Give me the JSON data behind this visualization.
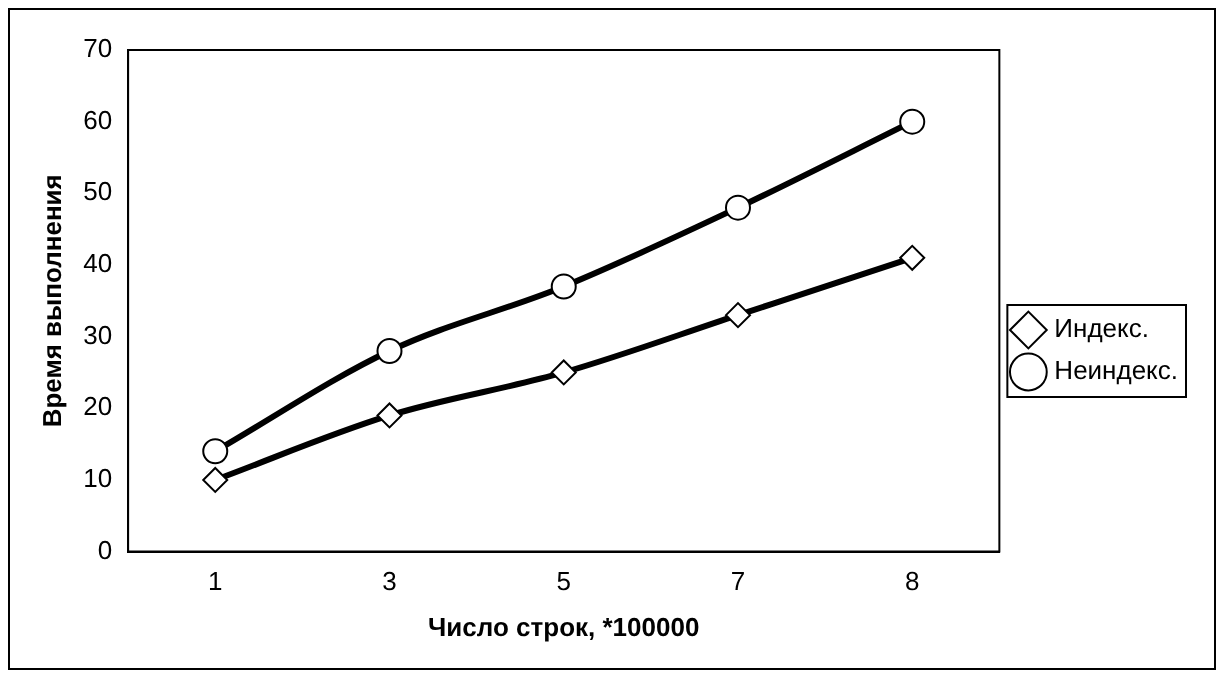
{
  "chart_data": {
    "type": "line",
    "xlabel": "Число строк, *100000",
    "ylabel": "Время выполнения",
    "categories": [
      "1",
      "3",
      "5",
      "7",
      "8"
    ],
    "series": [
      {
        "name": "Индекс.",
        "color": "#000000",
        "marker": "diamond",
        "values": [
          10,
          19,
          25,
          33,
          41
        ]
      },
      {
        "name": "Неиндекс.",
        "color": "#000000",
        "marker": "circle",
        "values": [
          14,
          28,
          37,
          48,
          60
        ]
      }
    ],
    "ylim": [
      0,
      70
    ],
    "yticks": [
      0,
      10,
      20,
      30,
      40,
      50,
      60,
      70
    ],
    "grid": false,
    "legend": "right"
  }
}
